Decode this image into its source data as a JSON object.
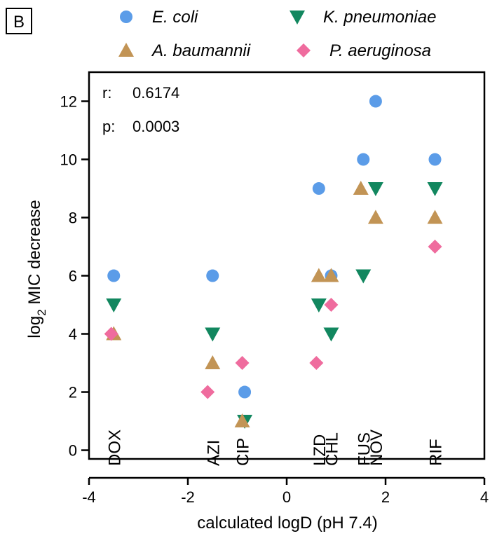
{
  "panel_label": "B",
  "chart_data": {
    "type": "scatter",
    "xlabel": "calculated logD (pH 7.4)",
    "ylabel_main": "log",
    "ylabel_sub": "2",
    "ylabel_rest": " MIC decrease",
    "xlim": [
      -4,
      4
    ],
    "ylim": [
      -0.3,
      13
    ],
    "xticks": [
      -4,
      -2,
      0,
      2,
      4
    ],
    "yticks": [
      0,
      2,
      4,
      6,
      8,
      10,
      12
    ],
    "stats": [
      {
        "label": "r:",
        "value": "0.6174"
      },
      {
        "label": "p:",
        "value": "0.0003"
      }
    ],
    "drug_labels": [
      {
        "text": "DOX",
        "x": -3.5
      },
      {
        "text": "AZI",
        "x": -1.5
      },
      {
        "text": "CIP",
        "x": -0.9
      },
      {
        "text": "LZD",
        "x": 0.65
      },
      {
        "text": "CHL",
        "x": 0.9
      },
      {
        "text": "FUS",
        "x": 1.55
      },
      {
        "text": "NOV",
        "x": 1.8
      },
      {
        "text": "RIF",
        "x": 3.0
      }
    ],
    "series": [
      {
        "name": "E. coli",
        "marker": "circle",
        "color": "#5b9ce8",
        "points": [
          [
            -3.5,
            6
          ],
          [
            -1.5,
            6
          ],
          [
            -0.85,
            2
          ],
          [
            0.65,
            9
          ],
          [
            0.9,
            6
          ],
          [
            1.55,
            10
          ],
          [
            1.8,
            12
          ],
          [
            3.0,
            10
          ]
        ]
      },
      {
        "name": "K. pneumoniae",
        "marker": "triangle-down",
        "color": "#12875f",
        "points": [
          [
            -3.5,
            5
          ],
          [
            -1.5,
            4
          ],
          [
            -0.85,
            1
          ],
          [
            0.65,
            5
          ],
          [
            0.9,
            4
          ],
          [
            1.55,
            6
          ],
          [
            1.8,
            9
          ],
          [
            3.0,
            9
          ]
        ]
      },
      {
        "name": "A. baumannii",
        "marker": "triangle-up",
        "color": "#c29455",
        "points": [
          [
            -3.5,
            4
          ],
          [
            -1.5,
            3
          ],
          [
            -0.9,
            1
          ],
          [
            0.65,
            6
          ],
          [
            0.9,
            6
          ],
          [
            1.5,
            9
          ],
          [
            1.8,
            8
          ],
          [
            3.0,
            8
          ]
        ]
      },
      {
        "name": "P. aeruginosa",
        "marker": "diamond",
        "color": "#ef6c9e",
        "points": [
          [
            -3.55,
            4
          ],
          [
            -1.6,
            2
          ],
          [
            -0.9,
            3
          ],
          [
            0.6,
            3
          ],
          [
            0.9,
            5
          ],
          [
            3.0,
            7
          ]
        ]
      }
    ],
    "legend": [
      {
        "series": 0,
        "position": "row1-left"
      },
      {
        "series": 1,
        "position": "row1-right"
      },
      {
        "series": 2,
        "position": "row2-left"
      },
      {
        "series": 3,
        "position": "row2-right"
      }
    ]
  }
}
